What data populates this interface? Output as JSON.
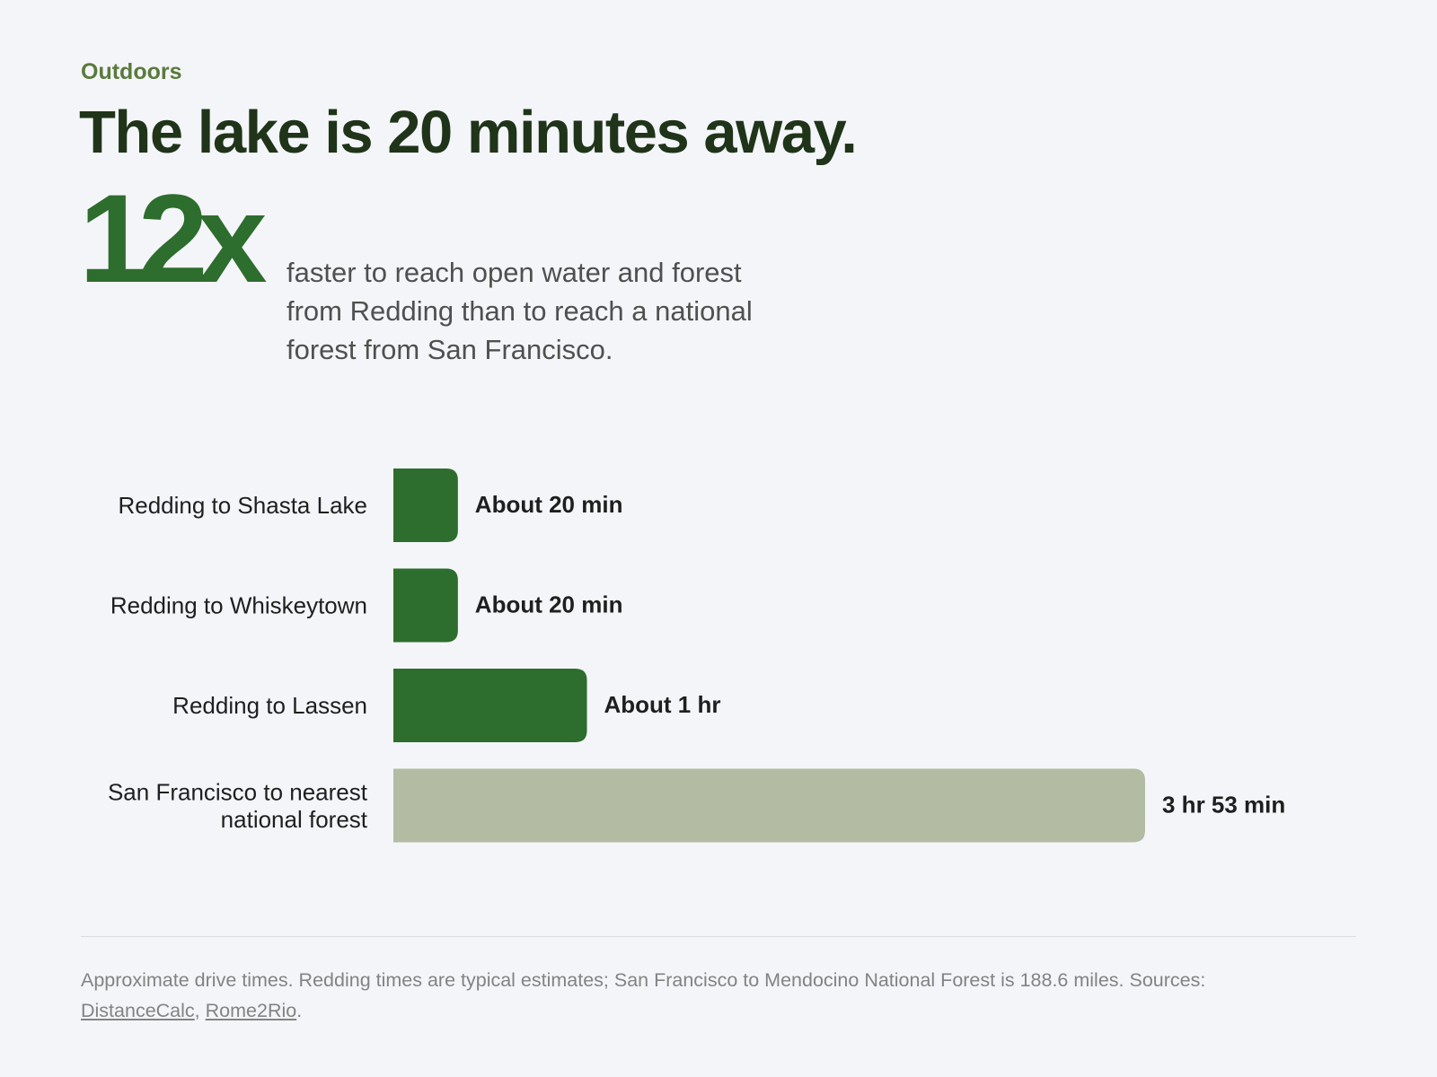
{
  "eyebrow": "Outdoors",
  "headline": "The lake is 20 minutes away.",
  "stat": {
    "value": "12x",
    "description": "faster to reach open water and forest from Redding than to reach a national forest from San Francisco."
  },
  "chart_data": {
    "type": "bar",
    "orientation": "horizontal",
    "categories": [
      [
        "Redding to Shasta Lake"
      ],
      [
        "Redding to Whiskeytown"
      ],
      [
        "Redding to Lassen"
      ],
      [
        "San Francisco to nearest",
        "national forest"
      ]
    ],
    "values_minutes": [
      20,
      20,
      60,
      233
    ],
    "value_labels": [
      "About 20 min",
      "About 20 min",
      "About 1 hr",
      "3 hr 53 min"
    ],
    "bar_colors": [
      "#2d6d2d",
      "#2d6d2d",
      "#2d6d2d",
      "#b3bca3"
    ],
    "grid": false,
    "legend": "none"
  },
  "footnote": {
    "text": "Approximate drive times. Redding times are typical estimates; San Francisco to Mendocino National Forest is 188.6 miles. Sources:",
    "sources": [
      "DistanceCalc",
      "Rome2Rio"
    ],
    "separator": ",",
    "end": "."
  }
}
